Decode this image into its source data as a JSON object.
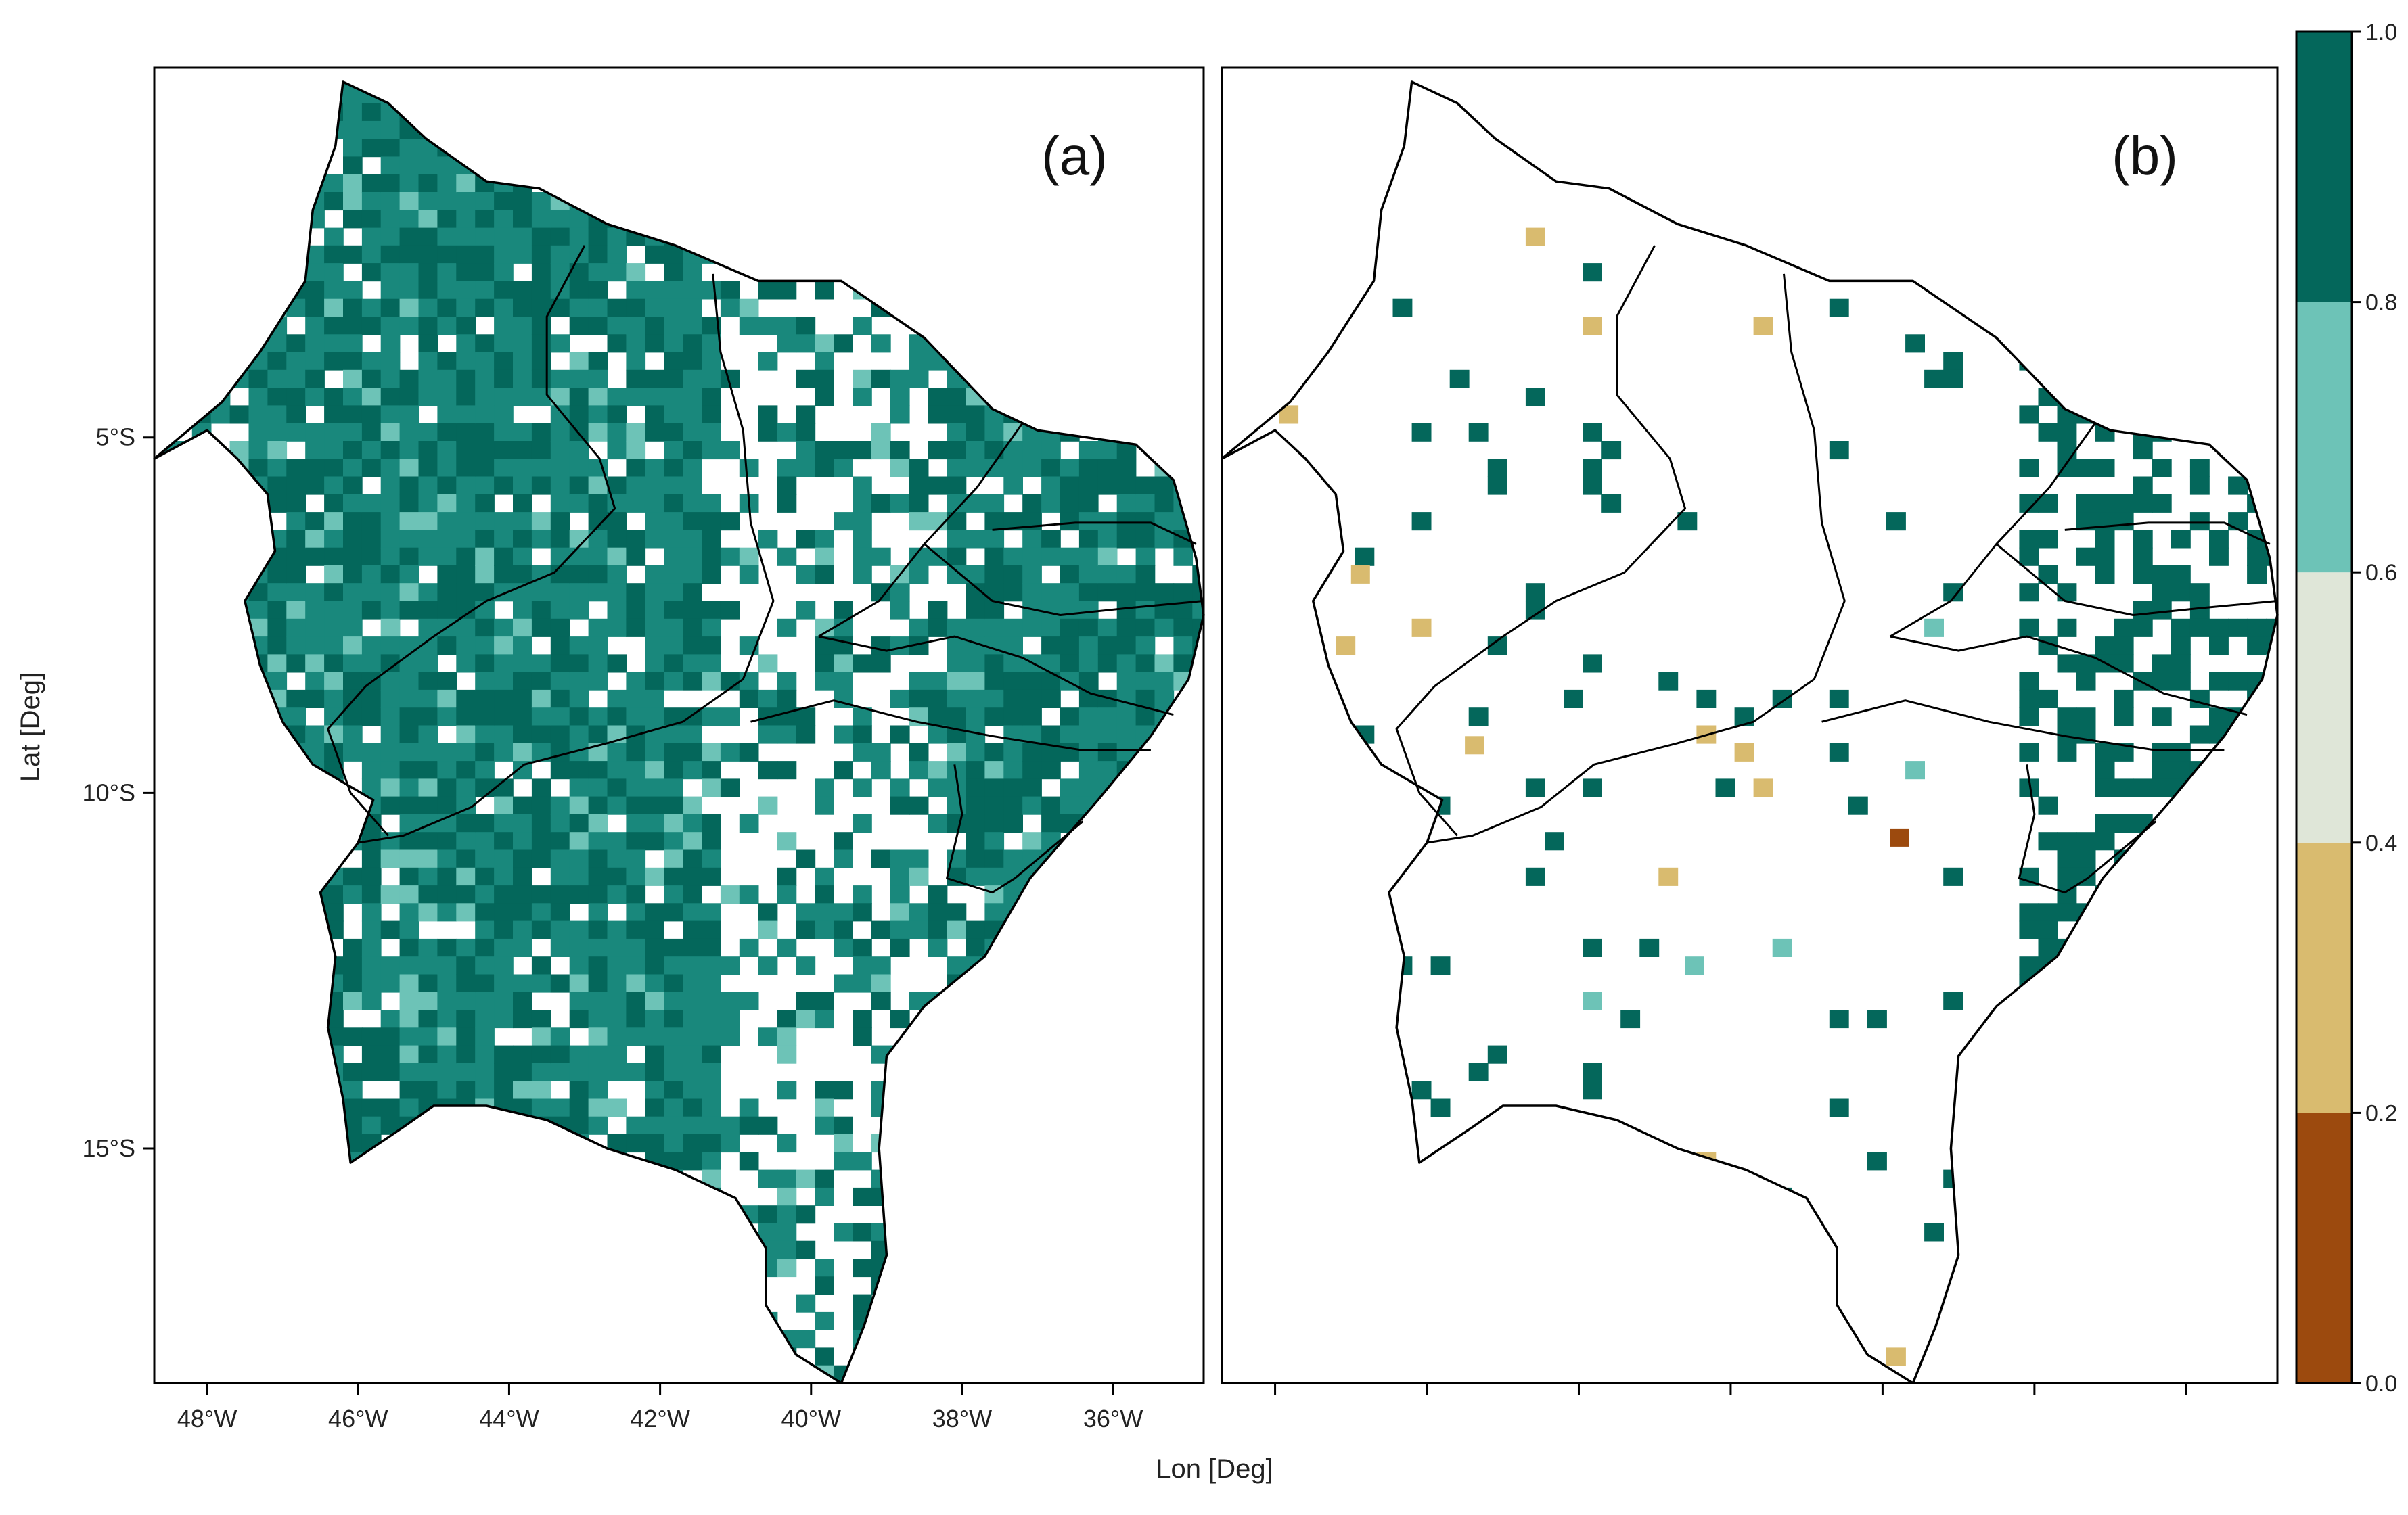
{
  "panels": [
    {
      "label": "(a)",
      "xlim": [
        -48.7,
        -34.8
      ],
      "ylim": [
        -18.3,
        0.2
      ]
    },
    {
      "label": "(b)",
      "xlim": [
        -48.7,
        -34.8
      ],
      "ylim": [
        -18.3,
        0.2
      ]
    }
  ],
  "axes": {
    "xlabel": "Lon [Deg]",
    "ylabel": "Lat [Deg]",
    "x_ticks": [
      {
        "value": -48,
        "label": "48°W"
      },
      {
        "value": -46,
        "label": "46°W"
      },
      {
        "value": -44,
        "label": "44°W"
      },
      {
        "value": -42,
        "label": "42°W"
      },
      {
        "value": -40,
        "label": "40°W"
      },
      {
        "value": -38,
        "label": "38°W"
      },
      {
        "value": -36,
        "label": "36°W"
      }
    ],
    "y_ticks": [
      {
        "value": -5,
        "label": "5°S"
      },
      {
        "value": -10,
        "label": "10°S"
      },
      {
        "value": -15,
        "label": "15°S"
      }
    ]
  },
  "colorbar": {
    "range": [
      0.0,
      1.0
    ],
    "tick_labels": [
      "0.0",
      "0.2",
      "0.4",
      "0.6",
      "0.8",
      "1.0"
    ],
    "bins": [
      {
        "from": 0.0,
        "to": 0.2,
        "color": "#9c4a0e"
      },
      {
        "from": 0.2,
        "to": 0.4,
        "color": "#d9bb6f"
      },
      {
        "from": 0.4,
        "to": 0.6,
        "color": "#dfe6d8"
      },
      {
        "from": 0.6,
        "to": 0.8,
        "color": "#6dc3b7"
      },
      {
        "from": 0.8,
        "to": 1.0,
        "color": "#04675b"
      }
    ]
  },
  "colors": {
    "dark": "#04675b",
    "medium": "#19887c",
    "light": "#6dc3b7",
    "tan": "#d9bb6f",
    "brown": "#9c4a0e",
    "border": "#000000"
  }
}
